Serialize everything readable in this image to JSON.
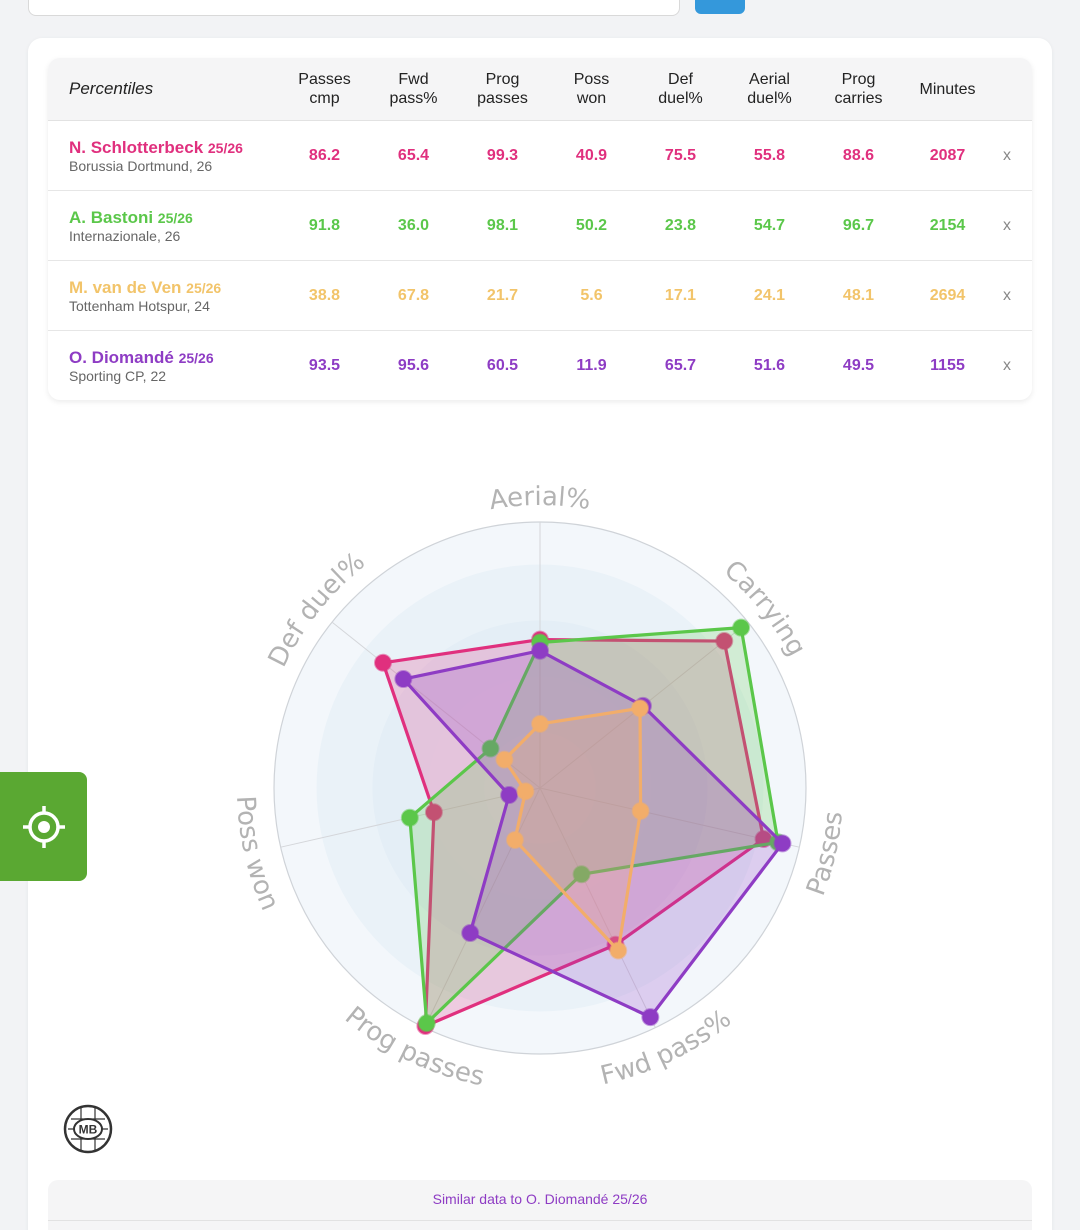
{
  "header_label": "Percentiles",
  "columns": [
    {
      "l1": "Passes",
      "l2": "cmp"
    },
    {
      "l1": "Fwd",
      "l2": "pass%"
    },
    {
      "l1": "Prog",
      "l2": "passes"
    },
    {
      "l1": "Poss",
      "l2": "won"
    },
    {
      "l1": "Def",
      "l2": "duel%"
    },
    {
      "l1": "Aerial",
      "l2": "duel%"
    },
    {
      "l1": "Prog",
      "l2": "carries"
    }
  ],
  "minutes_label": "Minutes",
  "remove_label": "x",
  "players": [
    {
      "name": "N. Schlotterbeck",
      "season": "25/26",
      "club": "Borussia Dortmund, 26",
      "color": "#e0307e",
      "values": [
        "86.2",
        "65.4",
        "99.3",
        "40.9",
        "75.5",
        "55.8",
        "88.6"
      ],
      "minutes": "2087"
    },
    {
      "name": "A. Bastoni",
      "season": "25/26",
      "club": "Internazionale, 26",
      "color": "#5bc74a",
      "values": [
        "91.8",
        "36.0",
        "98.1",
        "50.2",
        "23.8",
        "54.7",
        "96.7"
      ],
      "minutes": "2154"
    },
    {
      "name": "M. van de Ven",
      "season": "25/26",
      "club": "Tottenham Hotspur, 24",
      "color": "#f2c46a",
      "values": [
        "38.8",
        "67.8",
        "21.7",
        "5.6",
        "17.1",
        "24.1",
        "48.1"
      ],
      "minutes": "2694"
    },
    {
      "name": "O. Diomandé",
      "season": "25/26",
      "club": "Sporting CP, 22",
      "color": "#8e3cc4",
      "values": [
        "93.5",
        "95.6",
        "60.5",
        "11.9",
        "65.7",
        "51.6",
        "49.5"
      ],
      "minutes": "1155"
    }
  ],
  "radar": {
    "axes": [
      "Aerial%",
      "Carrying",
      "Passes",
      "Fwd pass%",
      "Prog passes",
      "Poss won",
      "Def duel%"
    ],
    "series": [
      {
        "color": "#e0307e",
        "values": [
          55.8,
          88.6,
          86.2,
          65.4,
          99.3,
          40.9,
          75.5
        ]
      },
      {
        "color": "#5bc74a",
        "values": [
          54.7,
          96.7,
          91.8,
          36.0,
          98.1,
          50.2,
          23.8
        ]
      },
      {
        "color": "#8e3cc4",
        "values": [
          51.6,
          49.5,
          93.5,
          95.6,
          60.5,
          11.9,
          65.7
        ]
      },
      {
        "color": "#f2ad6a",
        "values": [
          24.1,
          48.1,
          38.8,
          67.8,
          21.7,
          5.6,
          17.1
        ]
      }
    ]
  },
  "logo_text": "MB",
  "similar_title": "Similar data to O. Diomandé 25/26",
  "colors": {
    "fab": "#5aa832",
    "button": "#3498db"
  }
}
